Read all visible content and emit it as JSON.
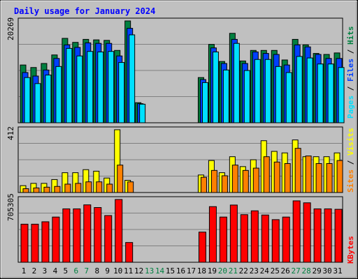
{
  "chart_data": [
    {
      "type": "bar",
      "title": "Daily usage for January 2024",
      "days": [
        "1",
        "2",
        "3",
        "4",
        "5",
        "6",
        "7",
        "8",
        "9",
        "10",
        "11",
        "12",
        "13",
        "14",
        "15",
        "16",
        "17",
        "18",
        "19",
        "20",
        "21",
        "22",
        "23",
        "24",
        "25",
        "26",
        "27",
        "28",
        "29",
        "30",
        "31"
      ],
      "weekend_days": [
        "6",
        "7",
        "13",
        "14",
        "20",
        "21",
        "27",
        "28"
      ],
      "panel": "hits-files-pages",
      "ylabel_parts": [
        "Pages",
        "Files",
        "Hits"
      ],
      "y_max_label": "20269",
      "series": [
        {
          "name": "Hits",
          "color": "#008040",
          "values": [
            11500,
            11000,
            11800,
            13500,
            16800,
            16000,
            16600,
            16500,
            16400,
            14400,
            20269,
            4000,
            0,
            0,
            0,
            0,
            0,
            9000,
            15600,
            12200,
            17800,
            12300,
            14400,
            14400,
            14400,
            12500,
            16600,
            15500,
            13800,
            13600,
            13900
          ]
        },
        {
          "name": "Files",
          "color": "#0040ff",
          "values": [
            10000,
            9300,
            10500,
            12800,
            15500,
            15000,
            15900,
            15800,
            15800,
            13300,
            18800,
            3800,
            0,
            0,
            0,
            0,
            0,
            8600,
            14900,
            11800,
            16600,
            11800,
            14100,
            13800,
            13600,
            11500,
            15500,
            15100,
            13600,
            12800,
            12800
          ]
        },
        {
          "name": "Pages",
          "color": "#00e0ff",
          "values": [
            9000,
            7800,
            9500,
            11200,
            14800,
            13300,
            14200,
            14100,
            14200,
            12000,
            17500,
            3700,
            0,
            0,
            0,
            0,
            0,
            8000,
            14100,
            10500,
            15800,
            10400,
            12600,
            12600,
            11200,
            10000,
            13200,
            12900,
            11700,
            11700,
            11000
          ]
        }
      ]
    },
    {
      "type": "bar",
      "panel": "visits-sites",
      "ylabel_parts": [
        "Sites",
        "Visits"
      ],
      "y_max_label": "412",
      "series": [
        {
          "name": "Visits",
          "color": "#ffff00",
          "values": [
            45,
            60,
            60,
            85,
            130,
            130,
            150,
            140,
            95,
            412,
            80,
            0,
            0,
            0,
            0,
            0,
            0,
            115,
            210,
            130,
            235,
            170,
            215,
            340,
            270,
            260,
            345,
            235,
            235,
            235,
            260
          ]
        },
        {
          "name": "Sites",
          "color": "#ff8000",
          "values": [
            25,
            30,
            35,
            40,
            55,
            60,
            70,
            70,
            55,
            180,
            70,
            0,
            0,
            0,
            0,
            0,
            0,
            100,
            145,
            110,
            180,
            145,
            160,
            235,
            200,
            190,
            290,
            240,
            190,
            190,
            210
          ]
        }
      ]
    },
    {
      "type": "bar",
      "panel": "kbytes",
      "ylabel_parts": [
        "KBytes"
      ],
      "y_max_label": "705305",
      "series": [
        {
          "name": "KBytes",
          "color": "#ff0000",
          "values": [
            428000,
            428000,
            455000,
            508000,
            600000,
            600000,
            645000,
            615000,
            525000,
            705305,
            222000,
            0,
            0,
            0,
            0,
            0,
            0,
            339000,
            625000,
            508000,
            643000,
            535000,
            578000,
            531000,
            479000,
            508000,
            690000,
            668000,
            600000,
            600000,
            595000
          ]
        }
      ]
    }
  ]
}
